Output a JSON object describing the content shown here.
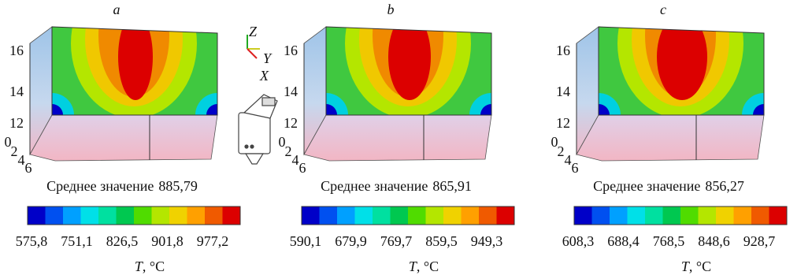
{
  "panels": [
    {
      "letter": "a",
      "z_ticks": [
        "16",
        "14",
        "12"
      ],
      "depth_ticks": [
        "0",
        "2",
        "4",
        "6"
      ],
      "mean_label": "Среднее значение",
      "mean_value": "885,79",
      "colorbar_ticks": [
        "575,8",
        "751,1",
        "826,5",
        "901,8",
        "977,2"
      ],
      "colorbar_symbol": "T",
      "colorbar_unit": ", °C"
    },
    {
      "letter": "b",
      "z_ticks": [
        "16",
        "14",
        "12"
      ],
      "depth_ticks": [
        "0",
        "2",
        "4",
        "6"
      ],
      "mean_label": "Среднее значение",
      "mean_value": "865,91",
      "colorbar_ticks": [
        "590,1",
        "679,9",
        "769,7",
        "859,5",
        "949,3"
      ],
      "colorbar_symbol": "T",
      "colorbar_unit": ", °C"
    },
    {
      "letter": "c",
      "z_ticks": [
        "16",
        "14",
        "12"
      ],
      "depth_ticks": [
        "0",
        "2",
        "4",
        "6"
      ],
      "mean_label": "Среднее значение",
      "mean_value": "856,27",
      "colorbar_ticks": [
        "608,3",
        "688,4",
        "768,5",
        "848,6",
        "928,7"
      ],
      "colorbar_symbol": "T",
      "colorbar_unit": ", °C"
    }
  ],
  "axes_triad": {
    "z": "Z",
    "y": "Y",
    "x": "X"
  }
}
